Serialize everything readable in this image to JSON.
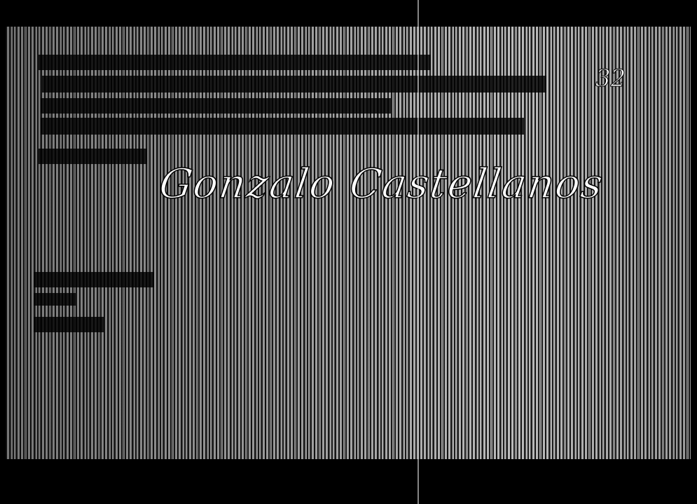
{
  "page_number": "32",
  "signature": "Gonzalo Castellanos"
}
